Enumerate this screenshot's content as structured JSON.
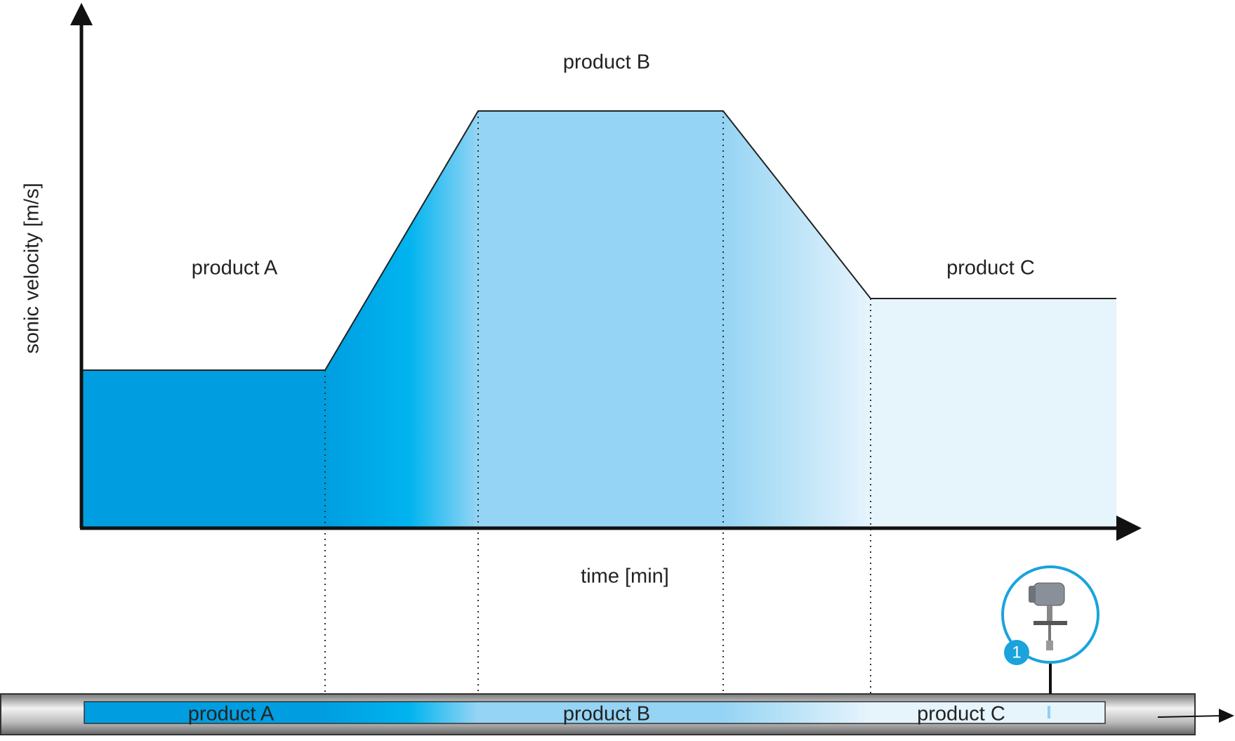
{
  "chart": {
    "y_axis_label": "sonic velocity [m/s]",
    "x_axis_label": "time [min]",
    "regions": [
      "product A",
      "product B",
      "product C"
    ]
  },
  "pipe": {
    "labels": [
      "product A",
      "product B",
      "product C"
    ],
    "badge": "1"
  }
}
